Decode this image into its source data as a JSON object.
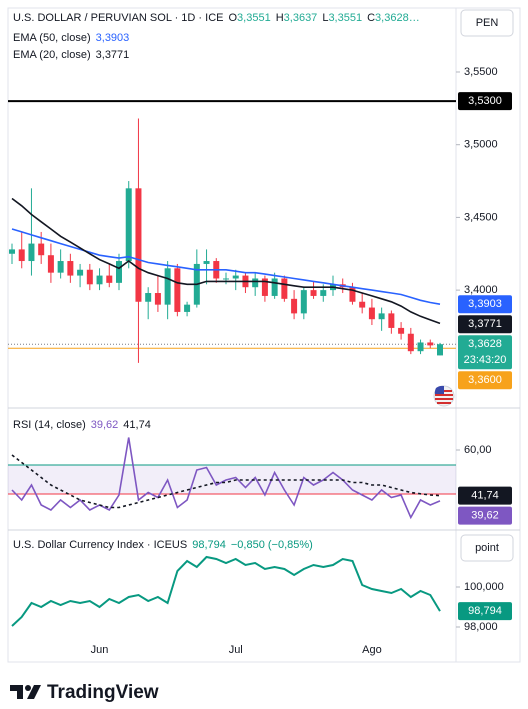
{
  "chart_data": [
    {
      "type": "candlestick",
      "title": "U.S. DOLLAR / PERUVIAN SOL · 1D · ICE",
      "ohlc_legend": [
        {
          "key": "O",
          "value": "3,3551"
        },
        {
          "key": "H",
          "value": "3,3637"
        },
        {
          "key": "L",
          "value": "3,3551"
        },
        {
          "key": "C",
          "value": "3,3628…"
        }
      ],
      "currency": "PEN",
      "categories": [
        null,
        null,
        null,
        null,
        null,
        null,
        null,
        null,
        null,
        "Jun",
        null,
        null,
        null,
        null,
        null,
        null,
        null,
        null,
        null,
        null,
        null,
        null,
        null,
        "Jul",
        null,
        null,
        null,
        null,
        null,
        null,
        null,
        null,
        null,
        null,
        null,
        null,
        null,
        "Ago",
        null,
        null,
        null,
        null,
        null,
        null,
        null
      ],
      "open": [
        3.425,
        3.428,
        3.42,
        3.432,
        3.424,
        3.412,
        3.42,
        3.41,
        3.414,
        3.404,
        3.41,
        3.405,
        3.42,
        3.47,
        3.392,
        3.398,
        3.39,
        3.415,
        3.385,
        3.39,
        3.418,
        3.42,
        3.408,
        3.408,
        3.41,
        3.402,
        3.408,
        3.396,
        3.408,
        3.394,
        3.384,
        3.4,
        3.396,
        3.4,
        3.404,
        3.402,
        3.392,
        3.388,
        3.38,
        3.384,
        3.374,
        3.37,
        3.358,
        3.364,
        3.3551
      ],
      "high": [
        3.432,
        3.44,
        3.47,
        3.44,
        3.432,
        3.428,
        3.425,
        3.418,
        3.418,
        3.415,
        3.418,
        3.425,
        3.475,
        3.518,
        3.402,
        3.41,
        3.42,
        3.418,
        3.392,
        3.428,
        3.428,
        3.422,
        3.412,
        3.414,
        3.412,
        3.412,
        3.41,
        3.412,
        3.41,
        3.4,
        3.402,
        3.406,
        3.404,
        3.41,
        3.408,
        3.405,
        3.398,
        3.394,
        3.388,
        3.386,
        3.378,
        3.374,
        3.366,
        3.366,
        3.3637
      ],
      "low": [
        3.418,
        3.415,
        3.41,
        3.418,
        3.405,
        3.408,
        3.405,
        3.402,
        3.4,
        3.4,
        3.402,
        3.4,
        3.415,
        3.35,
        3.38,
        3.385,
        3.38,
        3.382,
        3.382,
        3.388,
        3.404,
        3.405,
        3.404,
        3.4,
        3.398,
        3.396,
        3.392,
        3.394,
        3.392,
        3.38,
        3.38,
        3.394,
        3.392,
        3.396,
        3.398,
        3.39,
        3.384,
        3.376,
        3.372,
        3.37,
        3.366,
        3.356,
        3.356,
        3.36,
        3.3551
      ],
      "close": [
        3.428,
        3.42,
        3.432,
        3.424,
        3.412,
        3.42,
        3.41,
        3.414,
        3.404,
        3.41,
        3.405,
        3.42,
        3.47,
        3.392,
        3.398,
        3.39,
        3.415,
        3.385,
        3.39,
        3.418,
        3.42,
        3.408,
        3.408,
        3.41,
        3.402,
        3.408,
        3.396,
        3.408,
        3.394,
        3.384,
        3.4,
        3.396,
        3.4,
        3.404,
        3.402,
        3.392,
        3.388,
        3.38,
        3.384,
        3.374,
        3.37,
        3.358,
        3.364,
        3.362,
        3.3628
      ],
      "up_color": "#22ab94",
      "down_color": "#f23645",
      "series": [
        {
          "name": "EMA (50, close)",
          "color": "#2962ff",
          "last_label": "3,3903",
          "values": [
            3.442,
            3.44,
            3.438,
            3.436,
            3.434,
            3.432,
            3.43,
            3.428,
            3.426,
            3.424,
            3.423,
            3.422,
            3.423,
            3.421,
            3.419,
            3.418,
            3.417,
            3.416,
            3.415,
            3.414,
            3.414,
            3.414,
            3.414,
            3.413,
            3.412,
            3.412,
            3.411,
            3.41,
            3.409,
            3.408,
            3.407,
            3.406,
            3.405,
            3.404,
            3.403,
            3.402,
            3.401,
            3.4,
            3.399,
            3.398,
            3.397,
            3.395,
            3.393,
            3.3915,
            3.3903
          ]
        },
        {
          "name": "EMA (20, close)",
          "color": "#131722",
          "last_label": "3,3771",
          "values": [
            3.463,
            3.458,
            3.452,
            3.447,
            3.442,
            3.437,
            3.433,
            3.429,
            3.425,
            3.421,
            3.418,
            3.415,
            3.42,
            3.415,
            3.412,
            3.41,
            3.408,
            3.405,
            3.404,
            3.404,
            3.406,
            3.406,
            3.406,
            3.406,
            3.406,
            3.406,
            3.406,
            3.405,
            3.404,
            3.403,
            3.402,
            3.402,
            3.402,
            3.402,
            3.401,
            3.4,
            3.398,
            3.396,
            3.394,
            3.392,
            3.389,
            3.385,
            3.382,
            3.3795,
            3.3771
          ]
        }
      ],
      "hlines": [
        {
          "value": 3.53,
          "label": "3,5300",
          "color": "#000000"
        },
        {
          "value": 3.36,
          "label": "3,3600",
          "color": "#f7a21b"
        }
      ],
      "last_price": {
        "value": 3.3628,
        "label": "3,3628",
        "countdown": "23:43:20",
        "color": "#22ab94"
      },
      "ylim": [
        3.321,
        3.594
      ],
      "yticks": [
        {
          "value": 3.55,
          "label": "3,5500"
        },
        {
          "value": 3.5,
          "label": "3,5000"
        },
        {
          "value": 3.45,
          "label": "3,4500"
        },
        {
          "value": 3.4,
          "label": "3,4000"
        }
      ]
    },
    {
      "type": "line",
      "title": "RSI (14, close)",
      "series": [
        {
          "color": "#7e57c2",
          "last_label": "39,62",
          "values": [
            44,
            40,
            46,
            38,
            36,
            40,
            37,
            40,
            36,
            38,
            36,
            42,
            65,
            40,
            43,
            41,
            48,
            37,
            40,
            52,
            53,
            46,
            48,
            49,
            45,
            49,
            42,
            51,
            44,
            38,
            49,
            46,
            48,
            51,
            48,
            44,
            42,
            40,
            44,
            41,
            42,
            33,
            40,
            38,
            39.62
          ]
        },
        {
          "color": "#131722",
          "dash": true,
          "last_label": "41,74",
          "values": [
            58,
            55,
            52,
            49,
            46,
            44,
            42,
            40,
            39,
            38,
            37,
            37,
            38,
            39,
            40,
            41,
            42,
            43,
            44,
            45,
            46,
            47,
            47,
            48,
            48,
            48,
            48,
            48,
            48,
            48,
            48,
            48,
            48,
            48,
            48,
            47,
            47,
            46,
            46,
            45,
            44,
            43,
            42.5,
            42,
            41.74
          ]
        }
      ],
      "band": {
        "lower": 42.4,
        "upper": 54,
        "fill": "#7e57c2",
        "upper_color": "#089981",
        "lower_color": "#f23645"
      },
      "ylim": [
        28.8,
        76
      ],
      "yticks": [
        {
          "value": 60,
          "label": "60,00"
        }
      ]
    },
    {
      "type": "line",
      "title": "U.S. Dollar Currency Index · ICEUS",
      "change": "−0,850 (−0,85%)",
      "unit": "point",
      "series": [
        {
          "color": "#089981",
          "last_label": "98,794",
          "values": [
            98.05,
            98.5,
            99.2,
            99,
            99.3,
            99.1,
            99.3,
            99.2,
            99.3,
            99,
            99.4,
            99.2,
            99.5,
            99.6,
            99.3,
            99.5,
            99.2,
            100.8,
            101.3,
            101,
            101.5,
            101.4,
            101.2,
            101.4,
            101.1,
            101.2,
            100.9,
            101,
            100.9,
            100.6,
            100.9,
            101.1,
            101,
            101.1,
            101.4,
            101.3,
            100.1,
            99.9,
            99.8,
            99.7,
            99.9,
            99.5,
            99.8,
            99.6,
            98.794
          ]
        }
      ],
      "ylim": [
        96.35,
        102.75
      ],
      "yticks": [
        {
          "value": 100,
          "label": "100,000"
        },
        {
          "value": 98,
          "label": "98,000"
        }
      ]
    }
  ],
  "brand": "TradingView"
}
